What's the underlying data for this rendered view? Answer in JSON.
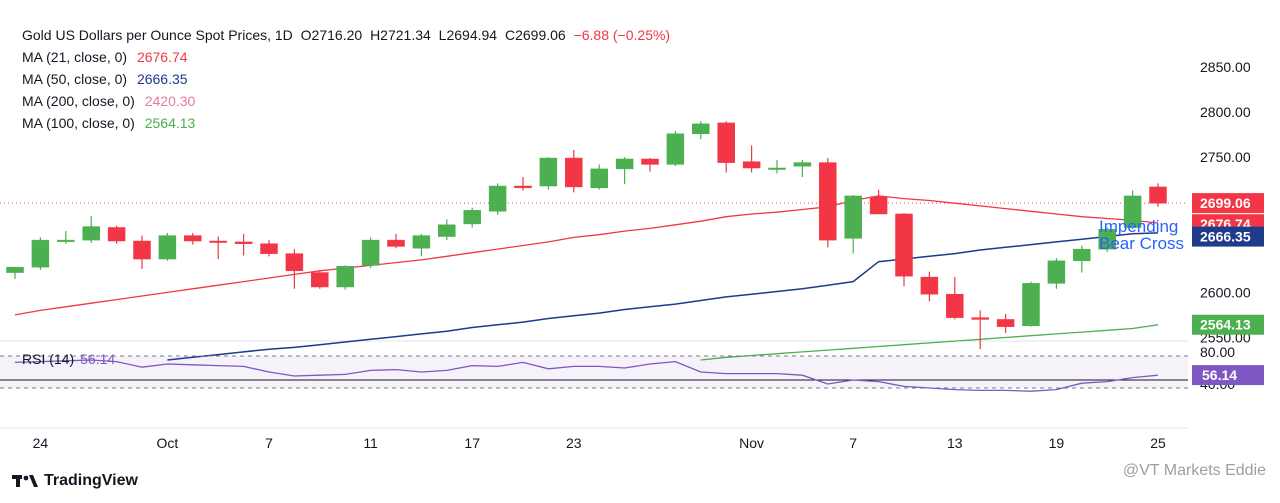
{
  "header": {
    "symbol": "Gold US Dollars per Ounce Spot Prices, 1D",
    "open": "O2716.20",
    "high": "H2721.34",
    "low": "L2694.94",
    "close": "C2699.06",
    "change": "−6.88 (−0.25%)"
  },
  "indicators": [
    {
      "label": "MA (21, close, 0)",
      "value": "2676.74",
      "color": "#f23645"
    },
    {
      "label": "MA (50, close, 0)",
      "value": "2666.35",
      "color": "#1e3a8a"
    },
    {
      "label": "MA (200, close, 0)",
      "value": "2420.30",
      "color": "#e57c9c"
    },
    {
      "label": "MA (100, close, 0)",
      "value": "2564.13",
      "color": "#4caf50"
    }
  ],
  "rsi": {
    "label": "RSI (14)",
    "value": "56.14",
    "color": "#7e57c2"
  },
  "annotation": {
    "line1": "Impending",
    "line2": "Bear Cross"
  },
  "branding": {
    "logo": "TradingView",
    "watermark": "@VT Markets Eddie"
  },
  "colors": {
    "up": "#4caf50",
    "down": "#f23645",
    "ma21": "#f23645",
    "ma50": "#1e3a8a",
    "ma100": "#4caf50",
    "rsi": "#7e57c2"
  },
  "chart_data": {
    "type": "candlestick",
    "price_axis": {
      "ticks": [
        "2850.00",
        "2800.00",
        "2750.00",
        "2600.00",
        "2550.00"
      ],
      "range": [
        2525,
        2880
      ]
    },
    "price_badges": [
      {
        "value": "2699.06",
        "color": "#f23645"
      },
      {
        "value": "2676.74",
        "color": "#f23645"
      },
      {
        "value": "2666.35",
        "color": "#1e3a8a"
      },
      {
        "value": "2564.13",
        "color": "#4caf50"
      }
    ],
    "x_ticks": [
      {
        "label": "24",
        "index": 1
      },
      {
        "label": "Oct",
        "index": 6
      },
      {
        "label": "7",
        "index": 10
      },
      {
        "label": "11",
        "index": 14
      },
      {
        "label": "17",
        "index": 18
      },
      {
        "label": "23",
        "index": 22
      },
      {
        "label": "Nov",
        "index": 29
      },
      {
        "label": "7",
        "index": 33
      },
      {
        "label": "13",
        "index": 37
      },
      {
        "label": "19",
        "index": 41
      },
      {
        "label": "25",
        "index": 45
      }
    ],
    "candles": [
      {
        "o": 2622,
        "h": 2627,
        "l": 2615,
        "c": 2628
      },
      {
        "o": 2628,
        "h": 2661,
        "l": 2625,
        "c": 2658
      },
      {
        "o": 2658,
        "h": 2668,
        "l": 2654,
        "c": 2658
      },
      {
        "o": 2658,
        "h": 2685,
        "l": 2655,
        "c": 2673
      },
      {
        "o": 2672,
        "h": 2674,
        "l": 2654,
        "c": 2657
      },
      {
        "o": 2657,
        "h": 2663,
        "l": 2626,
        "c": 2637
      },
      {
        "o": 2637,
        "h": 2666,
        "l": 2635,
        "c": 2663
      },
      {
        "o": 2663,
        "h": 2666,
        "l": 2653,
        "c": 2657
      },
      {
        "o": 2657,
        "h": 2662,
        "l": 2637,
        "c": 2656
      },
      {
        "o": 2656,
        "h": 2665,
        "l": 2641,
        "c": 2654
      },
      {
        "o": 2654,
        "h": 2658,
        "l": 2640,
        "c": 2643
      },
      {
        "o": 2643,
        "h": 2648,
        "l": 2604,
        "c": 2624
      },
      {
        "o": 2622,
        "h": 2625,
        "l": 2604,
        "c": 2606
      },
      {
        "o": 2606,
        "h": 2630,
        "l": 2603,
        "c": 2629
      },
      {
        "o": 2630,
        "h": 2661,
        "l": 2627,
        "c": 2658
      },
      {
        "o": 2658,
        "h": 2665,
        "l": 2649,
        "c": 2651
      },
      {
        "o": 2649,
        "h": 2665,
        "l": 2640,
        "c": 2663
      },
      {
        "o": 2662,
        "h": 2681,
        "l": 2658,
        "c": 2675
      },
      {
        "o": 2676,
        "h": 2694,
        "l": 2672,
        "c": 2691
      },
      {
        "o": 2690,
        "h": 2721,
        "l": 2686,
        "c": 2718
      },
      {
        "o": 2718,
        "h": 2728,
        "l": 2713,
        "c": 2716
      },
      {
        "o": 2718,
        "h": 2750,
        "l": 2714,
        "c": 2749
      },
      {
        "o": 2749,
        "h": 2758,
        "l": 2711,
        "c": 2717
      },
      {
        "o": 2716,
        "h": 2742,
        "l": 2714,
        "c": 2737
      },
      {
        "o": 2737,
        "h": 2750,
        "l": 2720,
        "c": 2748
      },
      {
        "o": 2748,
        "h": 2749,
        "l": 2734,
        "c": 2742
      },
      {
        "o": 2742,
        "h": 2779,
        "l": 2740,
        "c": 2776
      },
      {
        "o": 2776,
        "h": 2790,
        "l": 2770,
        "c": 2787
      },
      {
        "o": 2788,
        "h": 2790,
        "l": 2733,
        "c": 2744
      },
      {
        "o": 2745,
        "h": 2763,
        "l": 2733,
        "c": 2738
      },
      {
        "o": 2737,
        "h": 2747,
        "l": 2732,
        "c": 2738
      },
      {
        "o": 2740,
        "h": 2747,
        "l": 2728,
        "c": 2744
      },
      {
        "o": 2744,
        "h": 2749,
        "l": 2650,
        "c": 2658
      },
      {
        "o": 2660,
        "h": 2708,
        "l": 2643,
        "c": 2707
      },
      {
        "o": 2706,
        "h": 2714,
        "l": 2688,
        "c": 2687
      },
      {
        "o": 2687,
        "h": 2688,
        "l": 2607,
        "c": 2618
      },
      {
        "o": 2617,
        "h": 2623,
        "l": 2590,
        "c": 2598
      },
      {
        "o": 2598,
        "h": 2617,
        "l": 2570,
        "c": 2572
      },
      {
        "o": 2572,
        "h": 2580,
        "l": 2537,
        "c": 2570
      },
      {
        "o": 2570,
        "h": 2576,
        "l": 2555,
        "c": 2562
      },
      {
        "o": 2563,
        "h": 2612,
        "l": 2562,
        "c": 2610
      },
      {
        "o": 2610,
        "h": 2638,
        "l": 2604,
        "c": 2635
      },
      {
        "o": 2635,
        "h": 2652,
        "l": 2622,
        "c": 2648
      },
      {
        "o": 2648,
        "h": 2672,
        "l": 2645,
        "c": 2670
      },
      {
        "o": 2672,
        "h": 2713,
        "l": 2670,
        "c": 2707
      },
      {
        "o": 2717,
        "h": 2721,
        "l": 2695,
        "c": 2699
      }
    ],
    "ma21": [
      2575,
      2580,
      2584,
      2588,
      2592,
      2596,
      2600,
      2604,
      2608,
      2612,
      2616,
      2620,
      2624,
      2627,
      2630,
      2633,
      2636,
      2640,
      2644,
      2648,
      2652,
      2656,
      2661,
      2664,
      2668,
      2671,
      2675,
      2679,
      2684,
      2687,
      2689,
      2692,
      2695,
      2702,
      2707,
      2704,
      2702,
      2699,
      2696,
      2693,
      2690,
      2687,
      2684,
      2682,
      2680,
      2677
    ],
    "ma50": [
      null,
      null,
      null,
      null,
      null,
      null,
      2525,
      2528,
      2531,
      2534,
      2537,
      2539,
      2542,
      2545,
      2548,
      2551,
      2554,
      2557,
      2561,
      2564,
      2567,
      2571,
      2574,
      2577,
      2581,
      2584,
      2587,
      2591,
      2595,
      2598,
      2601,
      2604,
      2608,
      2612,
      2634,
      2637,
      2640,
      2643,
      2647,
      2650,
      2653,
      2656,
      2659,
      2662,
      2665,
      2666
    ],
    "ma100": [
      null,
      null,
      null,
      null,
      null,
      null,
      null,
      null,
      null,
      null,
      null,
      null,
      null,
      null,
      null,
      null,
      null,
      null,
      null,
      null,
      null,
      null,
      null,
      null,
      null,
      null,
      null,
      2525,
      2528,
      2530,
      2532,
      2534,
      2536,
      2538,
      2540,
      2542,
      2544,
      2546,
      2548,
      2550,
      2552,
      2554,
      2556,
      2558,
      2560,
      2564
    ],
    "rsi": {
      "levels": [
        80,
        40
      ],
      "midline": 50,
      "axis_ticks": [
        "80.00",
        "40.00"
      ],
      "values": [
        72,
        73,
        74,
        75,
        73,
        66,
        70,
        69,
        68,
        67,
        60,
        55,
        56,
        57,
        62,
        63,
        60,
        62,
        68,
        67,
        72,
        64,
        67,
        67,
        65,
        70,
        73,
        60,
        58,
        58,
        58,
        56,
        45,
        50,
        48,
        42,
        40,
        38,
        37,
        37,
        36,
        38,
        46,
        48,
        53,
        56
      ]
    }
  }
}
